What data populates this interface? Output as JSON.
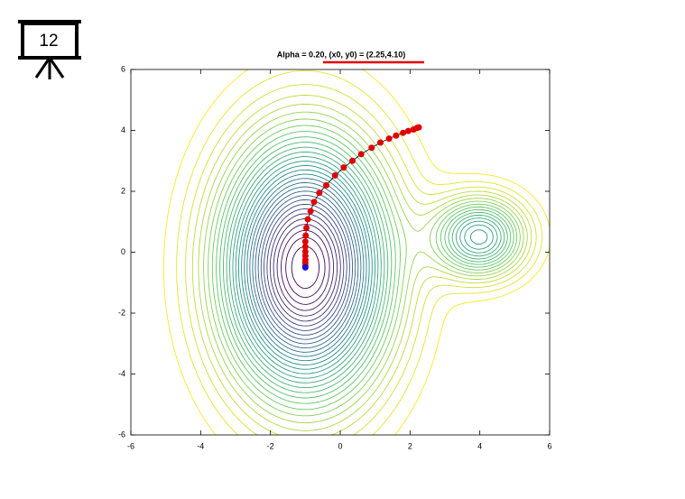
{
  "slide_number": "12",
  "chart_data": {
    "type": "contour-descent",
    "title": "Alpha = 0.20, (x0, y0) = (2.25,4.10)",
    "xlim": [
      -6,
      6
    ],
    "ylim": [
      -6,
      6
    ],
    "xticks": [
      -6,
      -4,
      -2,
      0,
      2,
      4,
      6
    ],
    "yticks": [
      -6,
      -4,
      -2,
      0,
      2,
      4,
      6
    ],
    "series": [
      {
        "color": "#e00000",
        "x": [
          2.25,
          2.2,
          2.1,
          1.95,
          1.8,
          1.6,
          1.4,
          1.15,
          0.9,
          0.6,
          0.35,
          0.1,
          -0.15,
          -0.4,
          -0.6,
          -0.75,
          -0.85,
          -0.93,
          -0.97,
          -0.99,
          -1,
          -1,
          -1,
          -1,
          -1,
          -1,
          -1
        ],
        "values": [
          4.1,
          4.08,
          4.03,
          3.98,
          3.92,
          3.83,
          3.73,
          3.6,
          3.43,
          3.22,
          3.0,
          2.78,
          2.52,
          2.2,
          1.95,
          1.65,
          1.35,
          1.08,
          0.8,
          0.55,
          0.35,
          0.18,
          0.02,
          -0.12,
          -0.25,
          -0.35,
          -0.45
        ]
      },
      {
        "color": "#1010e0",
        "x": [
          -1
        ],
        "values": [
          -0.5
        ]
      }
    ]
  }
}
